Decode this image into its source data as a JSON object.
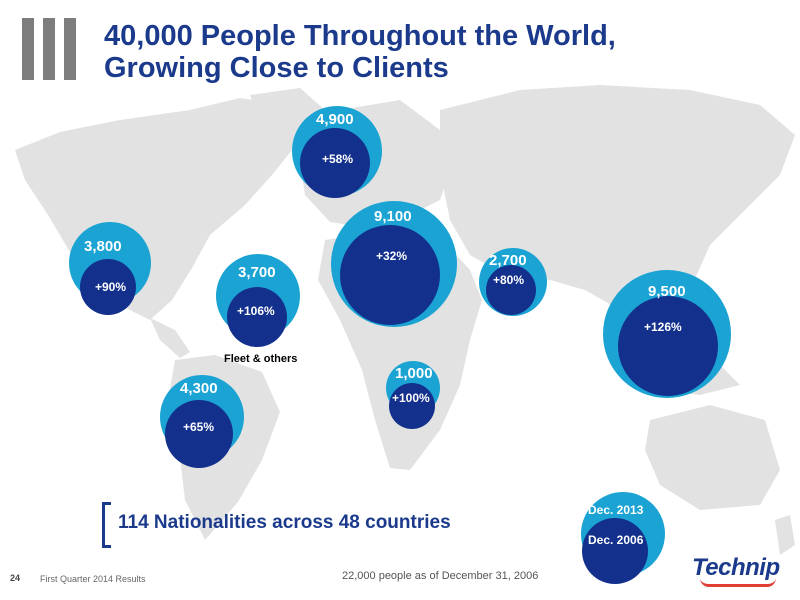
{
  "header": {
    "title_line1": "40,000 People Throughout the World,",
    "title_line2": "Growing Close to Clients"
  },
  "regions": [
    {
      "name": "north-america",
      "headcount": "3,800",
      "growth": "+90%"
    },
    {
      "name": "fleet-others",
      "headcount": "3,700",
      "growth": "+106%"
    },
    {
      "name": "north-europe",
      "headcount": "4,900",
      "growth": "+58%"
    },
    {
      "name": "europe-mediterranean",
      "headcount": "9,100",
      "growth": "+32%"
    },
    {
      "name": "middle-east",
      "headcount": "2,700",
      "growth": "+80%"
    },
    {
      "name": "asia-pacific",
      "headcount": "9,500",
      "growth": "+126%"
    },
    {
      "name": "africa",
      "headcount": "1,000",
      "growth": "+100%"
    },
    {
      "name": "south-america",
      "headcount": "4,300",
      "growth": "+65%"
    }
  ],
  "fleet_label": "Fleet & others",
  "nationalities": "114 Nationalities across 48 countries",
  "legend": {
    "outer": "Dec. 2013",
    "inner": "Dec. 2006"
  },
  "footer": {
    "page_number": "24",
    "report": "First Quarter 2014 Results",
    "note": "22,000 people as of December 31, 2006"
  },
  "logo": {
    "text": "Technip"
  },
  "colors": {
    "title": "#1b3a8c",
    "outer_bubble": "#1aa3d3",
    "inner_bubble": "#13308d",
    "map": "#e2e2e2",
    "logo_accent": "#e03c31"
  }
}
